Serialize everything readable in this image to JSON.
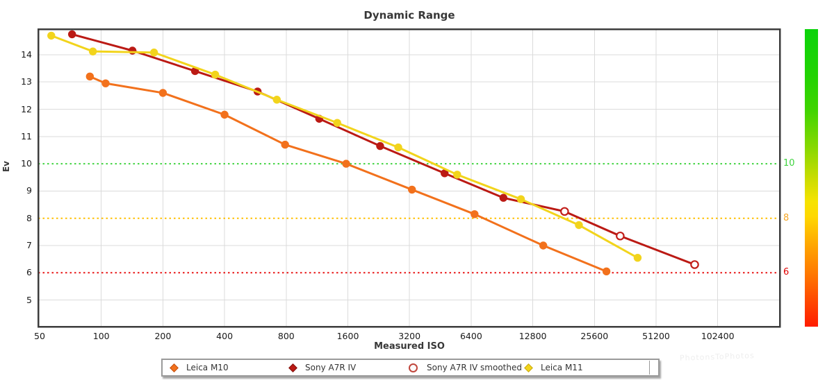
{
  "title": "Dynamic Range",
  "watermark": "PhotonsToPhotos",
  "axes": {
    "x": {
      "label": "Measured ISO",
      "tick_labels": [
        "50",
        "100",
        "200",
        "400",
        "800",
        "1600",
        "3200",
        "6400",
        "12800",
        "25600",
        "51200",
        "102400"
      ]
    },
    "y": {
      "label": "Ev",
      "tick_labels": [
        "5",
        "6",
        "7",
        "8",
        "9",
        "10",
        "11",
        "12",
        "13",
        "14"
      ]
    }
  },
  "reference_lines": [
    {
      "ev": 10,
      "label": "10",
      "line_color": "#3fd33f",
      "label_color": "#3fd33f"
    },
    {
      "ev": 8,
      "label": "8",
      "line_color": "#ffc000",
      "label_color": "#f5a623"
    },
    {
      "ev": 6,
      "label": "6",
      "line_color": "#e81414",
      "label_color": "#e00000"
    }
  ],
  "colors": {
    "background": "#ffffff",
    "plot_border": "#3c3c3c",
    "gridline": "#dbdbdb",
    "tick_text": "#1a1a1a",
    "title_text": "#383838"
  },
  "colorbar": {
    "top_color": "#0bd30b",
    "mid_color": "#ffd800",
    "bottom_color": "#ff1c00"
  },
  "legend": [
    {
      "label": "Leica M10",
      "marker": "diamond",
      "color": "#f2711c",
      "edge": "#c24e0f"
    },
    {
      "label": "Sony A7R IV",
      "marker": "diamond",
      "color": "#bb1a14",
      "edge": "#7e0f0b"
    },
    {
      "label": "Sony A7R IV smoothed",
      "marker": "open-circle",
      "color": "#ffffff",
      "edge": "#c0463c"
    },
    {
      "label": "Leica M11",
      "marker": "diamond",
      "color": "#f2d41c",
      "edge": "#c7a90e"
    }
  ],
  "chart_data": {
    "type": "line",
    "title": "Dynamic Range",
    "xlabel": "Measured ISO",
    "ylabel": "Ev",
    "x_scale": "log2",
    "xlim": [
      50,
      204800
    ],
    "ylim": [
      4.0,
      14.95
    ],
    "x_ticks": [
      50,
      100,
      200,
      400,
      800,
      1600,
      3200,
      6400,
      12800,
      25600,
      51200,
      102400
    ],
    "y_ticks": [
      5,
      6,
      7,
      8,
      9,
      10,
      11,
      12,
      13,
      14
    ],
    "grid": true,
    "legend_position": "bottom",
    "series": [
      {
        "name": "Leica M10",
        "color": "#f2711c",
        "marker": "circle",
        "points": [
          [
            88,
            13.2
          ],
          [
            105,
            12.95
          ],
          [
            200,
            12.6
          ],
          [
            400,
            11.8
          ],
          [
            790,
            10.7
          ],
          [
            1570,
            10.0
          ],
          [
            3290,
            9.05
          ],
          [
            6650,
            8.15
          ],
          [
            14400,
            7.0
          ],
          [
            29300,
            6.05
          ]
        ]
      },
      {
        "name": "Sony A7R IV",
        "color": "#bb1a14",
        "marker": "circle",
        "points": [
          [
            72,
            14.75
          ],
          [
            142,
            14.15
          ],
          [
            287,
            13.4
          ],
          [
            580,
            12.65
          ],
          [
            1160,
            11.65
          ],
          [
            2300,
            10.65
          ],
          [
            4750,
            9.65
          ],
          [
            9200,
            8.75
          ]
        ]
      },
      {
        "name": "Sony A7R IV smoothed",
        "color": "#bb1a14",
        "marker": "open-circle",
        "continues_series": "Sony A7R IV",
        "points": [
          [
            18300,
            8.25
          ],
          [
            34200,
            7.35
          ],
          [
            79000,
            6.3
          ]
        ]
      },
      {
        "name": "Leica M11",
        "color": "#f2d41c",
        "marker": "circle",
        "points": [
          [
            57,
            14.7
          ],
          [
            91,
            14.12
          ],
          [
            181,
            14.08
          ],
          [
            360,
            13.27
          ],
          [
            720,
            12.35
          ],
          [
            1420,
            11.5
          ],
          [
            2820,
            10.6
          ],
          [
            5470,
            9.6
          ],
          [
            11200,
            8.7
          ],
          [
            21500,
            7.75
          ],
          [
            41600,
            6.55
          ]
        ]
      }
    ]
  }
}
